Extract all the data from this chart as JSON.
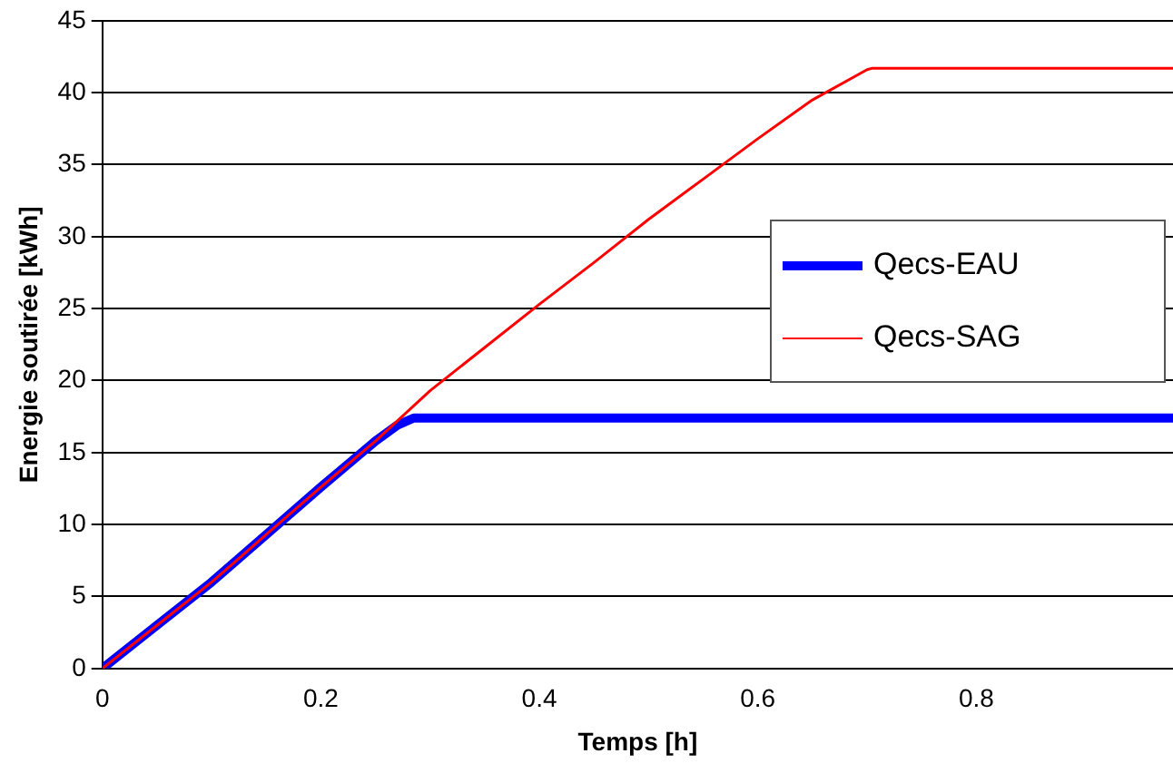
{
  "chart_data": {
    "type": "line",
    "xlabel": "Temps [h]",
    "ylabel": "Energie soutirée [kWh]",
    "xlim": [
      0,
      0.98
    ],
    "xticks": [
      0,
      0.2,
      0.4,
      0.6,
      0.8
    ],
    "ylim": [
      0,
      45
    ],
    "yticks": [
      0,
      5,
      10,
      15,
      20,
      25,
      30,
      35,
      40,
      45
    ],
    "grid": "y",
    "legend": "right",
    "marker": "none",
    "series": [
      {
        "name": "Qecs-EAU",
        "color": "#0000ff",
        "x": [
          0,
          0.05,
          0.1,
          0.15,
          0.2,
          0.25,
          0.27,
          0.285,
          0.5,
          0.98
        ],
        "values": [
          0,
          3,
          6,
          9.3,
          12.6,
          15.8,
          16.9,
          17.4,
          17.4,
          17.4
        ]
      },
      {
        "name": "Qecs-SAG",
        "color": "#ff0000",
        "x": [
          0,
          0.05,
          0.1,
          0.15,
          0.2,
          0.25,
          0.3,
          0.35,
          0.4,
          0.45,
          0.5,
          0.55,
          0.6,
          0.65,
          0.7,
          0.705,
          0.85,
          0.98
        ],
        "values": [
          0,
          3,
          6,
          9.3,
          12.6,
          15.8,
          19.3,
          22.3,
          25.3,
          28.2,
          31.2,
          34,
          36.8,
          39.5,
          41.6,
          41.7,
          41.7,
          41.7
        ]
      }
    ]
  }
}
